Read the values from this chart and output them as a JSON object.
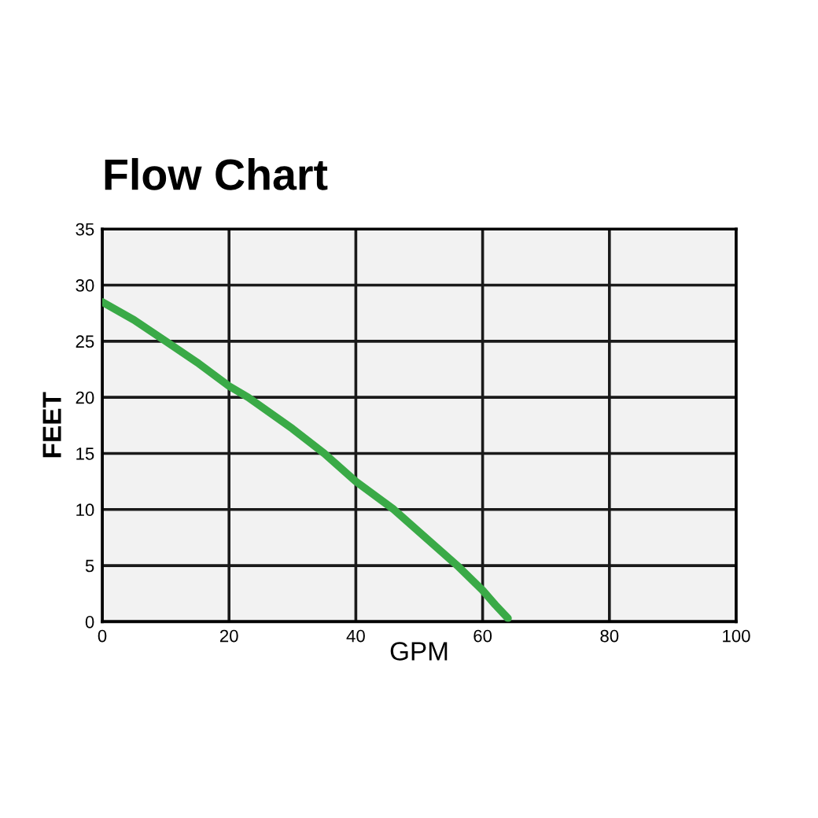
{
  "chart_data": {
    "type": "line",
    "title": "Flow Chart",
    "xlabel": "GPM",
    "ylabel": "FEET",
    "x": [
      0,
      5,
      10,
      15,
      20,
      23,
      30,
      35,
      40,
      46,
      50,
      56,
      60,
      62,
      64
    ],
    "series": [
      {
        "color": "#3aaa47",
        "values": [
          28.5,
          26.9,
          25,
          23.1,
          21,
          20,
          17.2,
          15,
          12.5,
          10,
          8,
          5,
          2.8,
          1.5,
          0.3
        ]
      }
    ],
    "xlim": [
      0,
      100
    ],
    "ylim": [
      0,
      35
    ],
    "xticks": [
      0,
      20,
      40,
      60,
      80,
      100
    ],
    "yticks": [
      0,
      5,
      10,
      15,
      20,
      25,
      30,
      35
    ],
    "grid": true,
    "marker": "none",
    "line_style": "solid"
  }
}
